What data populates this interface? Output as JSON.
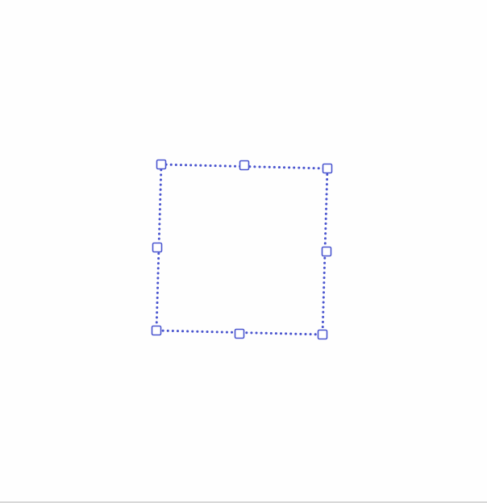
{
  "canvas": {
    "background": "#fefefe"
  },
  "selection": {
    "outline_color": "#4a55cf",
    "outline_style": "dotted",
    "handle_fill": "#ffffff",
    "handle_stroke": "#4a55cf",
    "handles": [
      "top-left-resize-handle",
      "top-middle-resize-handle",
      "top-right-resize-handle",
      "middle-right-resize-handle",
      "bottom-right-resize-handle",
      "bottom-middle-resize-handle",
      "bottom-left-resize-handle",
      "middle-left-resize-handle"
    ]
  }
}
